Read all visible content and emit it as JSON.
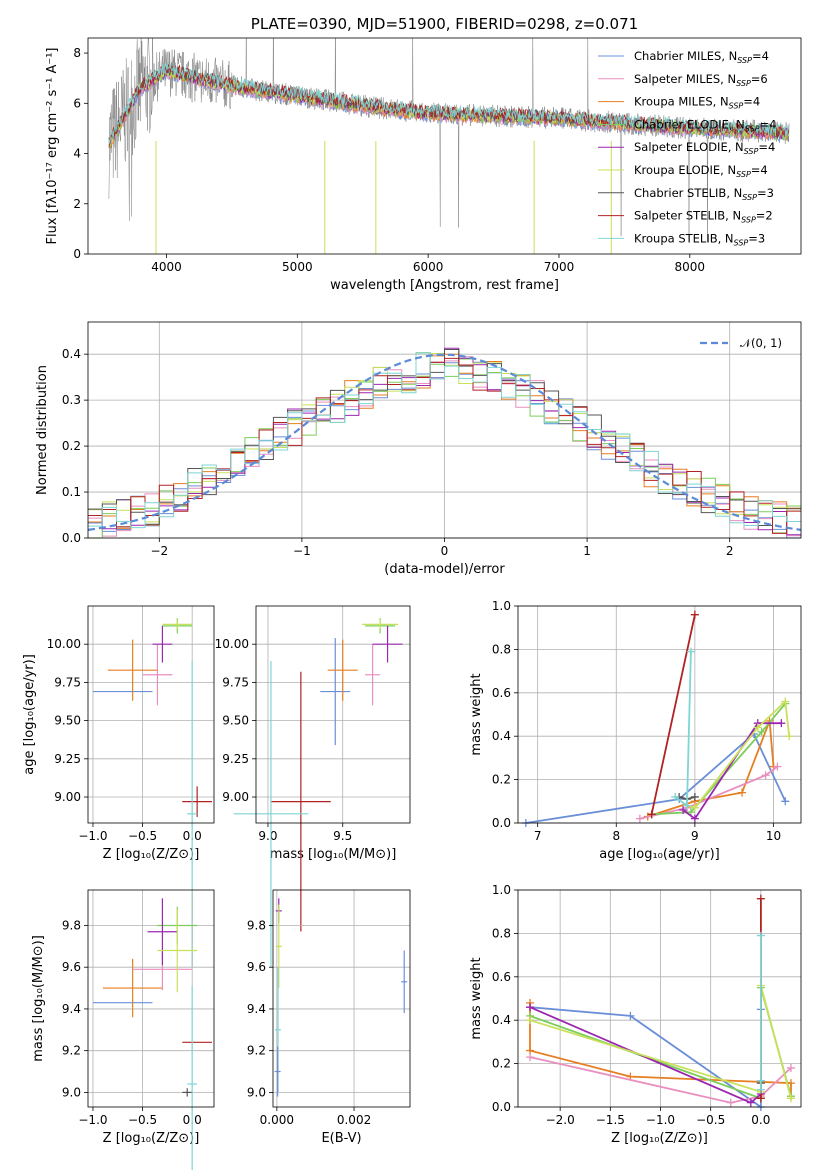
{
  "chart_data": [
    {
      "id": "spectrum",
      "type": "line",
      "title": "PLATE=0390, MJD=51900, FIBERID=0298, z=0.071",
      "xlabel": "wavelength [Angstrom, rest frame]",
      "ylabel": "Flux [fλ10⁻¹⁷ erg cm⁻² s⁻¹ A⁻¹]",
      "xlim": [
        3400,
        8850
      ],
      "ylim": [
        0,
        8.6
      ],
      "xticks": [
        4000,
        5000,
        6000,
        7000,
        8000
      ],
      "yticks": [
        0,
        2,
        4,
        6,
        8
      ],
      "legend_position": "top-right",
      "data_continuum": {
        "x": [
          3550,
          3800,
          4000,
          4300,
          4600,
          5000,
          5500,
          6000,
          6500,
          7000,
          7500,
          8000,
          8500,
          8750
        ],
        "y": [
          4.3,
          6.6,
          7.3,
          6.9,
          6.6,
          6.3,
          5.9,
          5.6,
          5.5,
          5.4,
          5.2,
          5.0,
          4.9,
          4.8
        ]
      },
      "series": [
        {
          "name": "Chabrier MILES, N_SSP=4",
          "label_main": "Chabrier MILES, N",
          "label_sub": "SSP",
          "label_tail": "=4",
          "color": "#6a8fd8"
        },
        {
          "name": "Salpeter MILES, N_SSP=6",
          "label_main": "Salpeter MILES, N",
          "label_sub": "SSP",
          "label_tail": "=6",
          "color": "#e88fbf"
        },
        {
          "name": "Kroupa MILES, N_SSP=4",
          "label_main": "Kroupa MILES, N",
          "label_sub": "SSP",
          "label_tail": "=4",
          "color": "#e67e22"
        },
        {
          "name": "Chabrier ELODIE, N_SSP=4",
          "label_main": "Chabrier ELODIE, N",
          "label_sub": "SSP",
          "label_tail": "=4",
          "color": "#7ccd5a"
        },
        {
          "name": "Salpeter ELODIE, N_SSP=4",
          "label_main": "Salpeter ELODIE, N",
          "label_sub": "SSP",
          "label_tail": "=4",
          "color": "#9b27b0"
        },
        {
          "name": "Kroupa ELODIE, N_SSP=4",
          "label_main": "Kroupa ELODIE, N",
          "label_sub": "SSP",
          "label_tail": "=4",
          "color": "#c8e05a"
        },
        {
          "name": "Chabrier STELIB, N_SSP=3",
          "label_main": "Chabrier STELIB, N",
          "label_sub": "SSP",
          "label_tail": "=3",
          "color": "#555555"
        },
        {
          "name": "Salpeter STELIB, N_SSP=2",
          "label_main": "Salpeter STELIB, N",
          "label_sub": "SSP",
          "label_tail": "=2",
          "color": "#b22222"
        },
        {
          "name": "Kroupa STELIB, N_SSP=3",
          "label_main": "Kroupa STELIB, N",
          "label_sub": "SSP",
          "label_tail": "=3",
          "color": "#7fd4d4"
        }
      ]
    },
    {
      "id": "residuals",
      "type": "histogram",
      "xlabel": "(data-model)/error",
      "ylabel": "Normed distribution",
      "xlim": [
        -2.5,
        2.5
      ],
      "ylim": [
        0,
        0.47
      ],
      "xticks": [
        -2,
        -1,
        0,
        1,
        2
      ],
      "yticks": [
        0.0,
        0.1,
        0.2,
        0.3,
        0.4
      ],
      "legend_position": "top-right",
      "legend": "𝒩(0, 1)",
      "gaussian": {
        "mu": 0,
        "sigma": 1,
        "color": "#5b8bd8"
      },
      "bin_width": 0.1,
      "profile": {
        "x": [
          -2.5,
          -2.0,
          -1.5,
          -1.0,
          -0.5,
          0.0,
          0.5,
          1.0,
          1.5,
          2.0,
          2.5
        ],
        "y": [
          0.03,
          0.07,
          0.16,
          0.25,
          0.33,
          0.38,
          0.33,
          0.24,
          0.14,
          0.07,
          0.03
        ]
      }
    },
    {
      "id": "age_vs_Z",
      "type": "scatter",
      "xlabel": "Z [log₁₀(Z/Z⊙)]",
      "ylabel": "age  [log₁₀(age/yr)]",
      "xlim": [
        -1.05,
        0.22
      ],
      "ylim": [
        8.83,
        10.25
      ],
      "xticks": [
        -1.0,
        -0.5,
        0.0
      ],
      "yticks": [
        9.0,
        9.25,
        9.5,
        9.75,
        10.0
      ],
      "points": [
        {
          "color": "#6a8fd8",
          "x": -0.7,
          "y": 9.69,
          "xerr": 0.3,
          "yerr": 0.0
        },
        {
          "color": "#e67e22",
          "x": -0.6,
          "y": 9.83,
          "xerr": 0.25,
          "yerr": 0.2
        },
        {
          "color": "#e88fbf",
          "x": -0.35,
          "y": 9.8,
          "xerr": 0.15,
          "yerr": 0.2
        },
        {
          "color": "#7ccd5a",
          "x": -0.15,
          "y": 10.12,
          "xerr": 0.15,
          "yerr": 0.05
        },
        {
          "color": "#9b27b0",
          "x": -0.3,
          "y": 10.0,
          "xerr": 0.1,
          "yerr": 0.12
        },
        {
          "color": "#c8e05a",
          "x": -0.15,
          "y": 10.13,
          "xerr": 0.15,
          "yerr": 0.03
        },
        {
          "color": "#b22222",
          "x": 0.05,
          "y": 8.97,
          "xerr": 0.15,
          "yerr": 0.1
        },
        {
          "color": "#7fd4d4",
          "x": 0.0,
          "y": 8.89,
          "xerr": 0.05,
          "yerr": 1.0
        }
      ]
    },
    {
      "id": "age_vs_mass",
      "type": "scatter",
      "xlabel": "mass [log₁₀(M/M⊙)]",
      "ylabel": "",
      "xlim": [
        8.92,
        9.95
      ],
      "ylim": [
        8.83,
        10.25
      ],
      "xticks": [
        9.0,
        9.5
      ],
      "yticks": [
        9.0,
        9.25,
        9.5,
        9.75,
        10.0
      ],
      "points": [
        {
          "color": "#6a8fd8",
          "x": 9.45,
          "y": 9.69,
          "xerr": 0.1,
          "yerr": 0.35
        },
        {
          "color": "#e67e22",
          "x": 9.5,
          "y": 9.83,
          "xerr": 0.1,
          "yerr": 0.2
        },
        {
          "color": "#e88fbf",
          "x": 9.7,
          "y": 9.8,
          "xerr": 0.05,
          "yerr": 0.2
        },
        {
          "color": "#7ccd5a",
          "x": 9.75,
          "y": 10.12,
          "xerr": 0.1,
          "yerr": 0.05
        },
        {
          "color": "#9b27b0",
          "x": 9.8,
          "y": 10.0,
          "xerr": 0.1,
          "yerr": 0.12
        },
        {
          "color": "#c8e05a",
          "x": 9.75,
          "y": 10.13,
          "xerr": 0.12,
          "yerr": 0.03
        },
        {
          "color": "#b22222",
          "x": 9.22,
          "y": 8.97,
          "xerr": 0.2,
          "yerr": 0.85
        },
        {
          "color": "#7fd4d4",
          "x": 9.02,
          "y": 8.89,
          "xerr": 0.25,
          "yerr": 1.0
        }
      ]
    },
    {
      "id": "weight_vs_age",
      "type": "line",
      "xlabel": "age  [log₁₀(age/yr)]",
      "ylabel": "mass weight",
      "xlim": [
        6.75,
        10.35
      ],
      "ylim": [
        0,
        1.0
      ],
      "xticks": [
        7,
        8,
        9,
        10
      ],
      "yticks": [
        0.0,
        0.2,
        0.4,
        0.6,
        0.8,
        1.0
      ],
      "series": [
        {
          "color": "#6a8fd8",
          "x": [
            6.85,
            8.8,
            9.75,
            10.15
          ],
          "y": [
            0.0,
            0.11,
            0.41,
            0.1
          ]
        },
        {
          "color": "#e67e22",
          "x": [
            8.4,
            9.0,
            9.6,
            9.95,
            10.0
          ],
          "y": [
            0.03,
            0.1,
            0.14,
            0.47,
            0.26
          ]
        },
        {
          "color": "#e88fbf",
          "x": [
            8.3,
            8.9,
            9.9,
            10.05
          ],
          "y": [
            0.02,
            0.07,
            0.22,
            0.26
          ]
        },
        {
          "color": "#7ccd5a",
          "x": [
            8.45,
            8.95,
            9.85,
            10.15
          ],
          "y": [
            0.04,
            0.05,
            0.42,
            0.55
          ]
        },
        {
          "color": "#9b27b0",
          "x": [
            8.85,
            9.0,
            9.8,
            10.1
          ],
          "y": [
            0.06,
            0.02,
            0.46,
            0.46
          ]
        },
        {
          "color": "#c8e05a",
          "x": [
            8.9,
            9.0,
            9.8,
            10.15,
            10.2
          ],
          "y": [
            0.08,
            0.07,
            0.44,
            0.56,
            0.4
          ]
        },
        {
          "color": "#555555",
          "x": [
            8.8,
            8.9,
            9.0
          ],
          "y": [
            0.12,
            0.11,
            0.12
          ]
        },
        {
          "color": "#b22222",
          "x": [
            8.45,
            9.0
          ],
          "y": [
            0.04,
            0.96
          ]
        },
        {
          "color": "#7fd4d4",
          "x": [
            8.75,
            8.9,
            8.95
          ],
          "y": [
            0.12,
            0.08,
            0.79
          ]
        }
      ]
    },
    {
      "id": "mass_vs_Z",
      "type": "scatter",
      "xlabel": "Z [log₁₀(Z/Z⊙)]",
      "ylabel": "mass [log₁₀(M/M⊙)]",
      "xlim": [
        -1.05,
        0.22
      ],
      "ylim": [
        8.93,
        9.97
      ],
      "xticks": [
        -1.0,
        -0.5,
        0.0
      ],
      "yticks": [
        9.0,
        9.2,
        9.4,
        9.6,
        9.8
      ],
      "points": [
        {
          "color": "#6a8fd8",
          "x": -0.7,
          "y": 9.43,
          "xerr": 0.3,
          "yerr": 0.0
        },
        {
          "color": "#e67e22",
          "x": -0.6,
          "y": 9.5,
          "xerr": 0.3,
          "yerr": 0.14
        },
        {
          "color": "#e88fbf",
          "x": -0.3,
          "y": 9.59,
          "xerr": 0.3,
          "yerr": 0.1
        },
        {
          "color": "#7ccd5a",
          "x": -0.15,
          "y": 9.8,
          "xerr": 0.2,
          "yerr": 0.09
        },
        {
          "color": "#9b27b0",
          "x": -0.3,
          "y": 9.77,
          "xerr": 0.15,
          "yerr": 0.16
        },
        {
          "color": "#c8e05a",
          "x": -0.15,
          "y": 9.68,
          "xerr": 0.2,
          "yerr": 0.2
        },
        {
          "color": "#555555",
          "x": -0.05,
          "y": 9.0,
          "xerr": 0.05,
          "yerr": 0.02
        },
        {
          "color": "#b22222",
          "x": 0.05,
          "y": 9.24,
          "xerr": 0.15,
          "yerr": 0.0
        },
        {
          "color": "#7fd4d4",
          "x": 0.0,
          "y": 9.04,
          "xerr": 0.05,
          "yerr": 0.47
        }
      ]
    },
    {
      "id": "mass_vs_EBV",
      "type": "scatter",
      "xlabel": "E(B-V)",
      "ylabel": "",
      "xlim": [
        -0.0001,
        0.00345
      ],
      "ylim": [
        8.93,
        9.97
      ],
      "xticks": [
        0.0,
        0.002
      ],
      "xtick_labels": [
        "0.000",
        "0.002"
      ],
      "yticks": [
        9.0,
        9.2,
        9.4,
        9.6,
        9.8
      ],
      "points": [
        {
          "color": "#6a8fd8",
          "x": 0.0033,
          "y": 9.53,
          "xerr": 0.0,
          "yerr": 0.15
        },
        {
          "color": "#9b27b0",
          "x": 5e-05,
          "y": 9.87,
          "xerr": 0.0,
          "yerr": 0.06
        },
        {
          "color": "#c8e05a",
          "x": 5e-05,
          "y": 9.7,
          "xerr": 0.0,
          "yerr": 0.2
        },
        {
          "color": "#7fd4d4",
          "x": 3e-05,
          "y": 9.3,
          "xerr": 0.0,
          "yerr": 0.3
        },
        {
          "color": "#6a8fd8",
          "x": 2e-05,
          "y": 9.1,
          "xerr": 0.0,
          "yerr": 0.12
        }
      ]
    },
    {
      "id": "weight_vs_Z",
      "type": "line",
      "xlabel": "Z [log₁₀(Z/Z⊙)]",
      "ylabel": "mass weight",
      "xlim": [
        -2.42,
        0.4
      ],
      "ylim": [
        0,
        1.0
      ],
      "xticks": [
        -2.0,
        -1.5,
        -1.0,
        -0.5,
        0.0
      ],
      "yticks": [
        0.0,
        0.2,
        0.4,
        0.6,
        0.8,
        1.0
      ],
      "series": [
        {
          "color": "#6a8fd8",
          "x": [
            -2.3,
            -1.3,
            0.0,
            0.0
          ],
          "y": [
            0.46,
            0.42,
            0.0,
            0.45
          ]
        },
        {
          "color": "#e67e22",
          "x": [
            -2.3,
            -2.3,
            -1.3,
            0.3,
            0.3
          ],
          "y": [
            0.48,
            0.26,
            0.14,
            0.11,
            0.05
          ]
        },
        {
          "color": "#e88fbf",
          "x": [
            -2.3,
            -0.3,
            0.0,
            0.3
          ],
          "y": [
            0.23,
            0.02,
            0.05,
            0.18
          ]
        },
        {
          "color": "#7ccd5a",
          "x": [
            -2.3,
            0.0,
            0.0,
            0.3
          ],
          "y": [
            0.42,
            0.04,
            0.55,
            0.05
          ]
        },
        {
          "color": "#9b27b0",
          "x": [
            -2.3,
            -0.1,
            0.0
          ],
          "y": [
            0.46,
            0.02,
            0.06
          ]
        },
        {
          "color": "#c8e05a",
          "x": [
            -2.3,
            0.0,
            0.0,
            0.3
          ],
          "y": [
            0.4,
            0.07,
            0.56,
            0.04
          ]
        },
        {
          "color": "#555555",
          "x": [
            0.0,
            0.0
          ],
          "y": [
            0.11,
            0.12
          ]
        },
        {
          "color": "#b22222",
          "x": [
            0.0,
            0.0
          ],
          "y": [
            0.04,
            0.96
          ]
        },
        {
          "color": "#7fd4d4",
          "x": [
            0.0,
            0.0,
            0.0
          ],
          "y": [
            0.12,
            0.08,
            0.79
          ]
        }
      ]
    }
  ]
}
